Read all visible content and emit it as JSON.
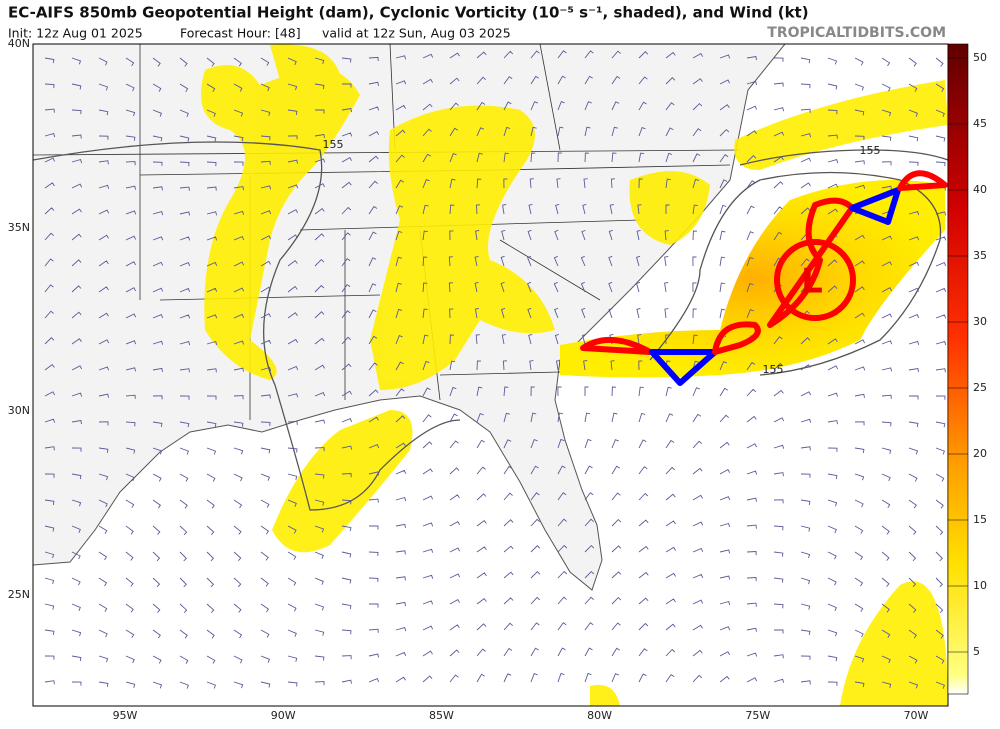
{
  "header": {
    "title": "EC-AIFS 850mb Geopotential Height (dam), Cyclonic Vorticity (10⁻⁵ s⁻¹, shaded), and Wind (kt)",
    "init": "Init: 12z Aug 01 2025",
    "forecast_hour": "Forecast Hour: [48]",
    "valid": "valid at 12z Sun, Aug 03 2025",
    "site": "TROPICALTIDBITS.COM"
  },
  "map": {
    "lat_labels": [
      "40N",
      "35N",
      "30N",
      "25N"
    ],
    "lon_labels": [
      "95W",
      "90W",
      "85W",
      "80W",
      "75W",
      "70W"
    ],
    "contour_labels": [
      "155",
      "155",
      "155"
    ],
    "low_label": "L"
  },
  "colorbar": {
    "ticks": [
      5,
      10,
      15,
      20,
      25,
      30,
      35,
      40,
      45,
      50
    ]
  }
}
